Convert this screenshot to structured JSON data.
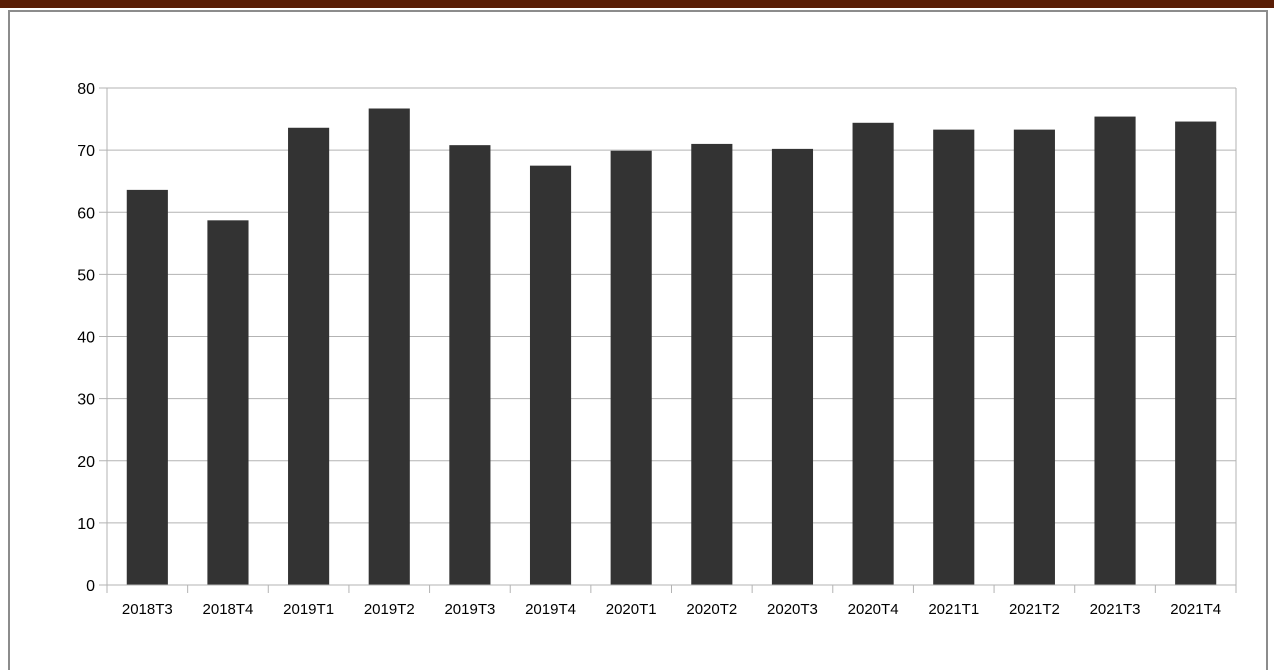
{
  "chart_data": {
    "type": "bar",
    "categories": [
      "2018T3",
      "2018T4",
      "2019T1",
      "2019T2",
      "2019T3",
      "2019T4",
      "2020T1",
      "2020T2",
      "2020T3",
      "2020T4",
      "2021T1",
      "2021T2",
      "2021T3",
      "2021T4"
    ],
    "values": [
      63.6,
      58.7,
      73.6,
      76.7,
      70.8,
      67.5,
      69.9,
      71.0,
      70.2,
      74.4,
      73.3,
      73.3,
      75.4,
      74.6
    ],
    "ylim": [
      0,
      80
    ],
    "yticks": [
      0,
      10,
      20,
      30,
      40,
      50,
      60,
      70,
      80
    ],
    "grid": true,
    "bar_color": "#333333",
    "grid_color": "#b3b3b3",
    "title": "",
    "xlabel": "",
    "ylabel": ""
  }
}
